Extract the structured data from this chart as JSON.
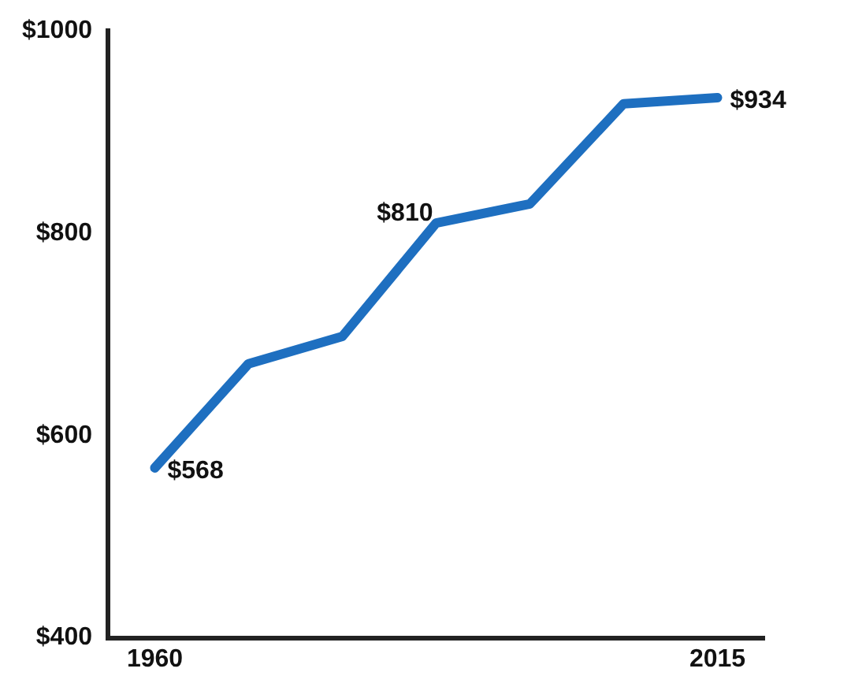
{
  "chart_data": {
    "type": "line",
    "categories": [
      "1960",
      null,
      null,
      null,
      null,
      null,
      "2015"
    ],
    "series": [
      {
        "color": "#1e6fc0",
        "values": [
          568,
          671,
          698,
          810,
          829,
          928,
          934
        ],
        "value_labels": [
          "$568",
          null,
          null,
          "$810",
          null,
          null,
          "$934"
        ]
      }
    ],
    "ylim": [
      400,
      1000
    ],
    "yticks": [
      {
        "value": 400,
        "label": "$400"
      },
      {
        "value": 600,
        "label": "$600"
      },
      {
        "value": 800,
        "label": "$800"
      },
      {
        "value": 1000,
        "label": "$1000"
      }
    ],
    "grid": false,
    "legend": false,
    "marker": "none",
    "line_style": "solid"
  }
}
